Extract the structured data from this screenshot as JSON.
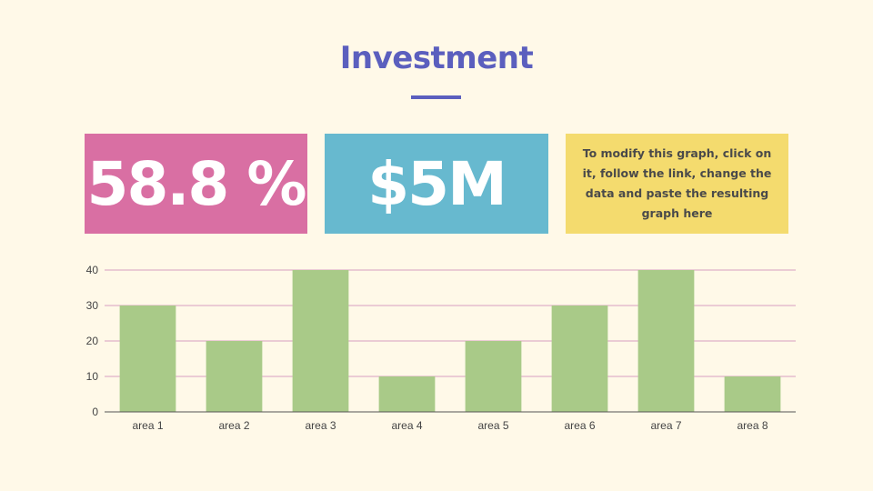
{
  "slide": {
    "title": "Investment",
    "stat_percent": "58.8 %",
    "stat_money": "$5M",
    "note": "To modify this graph, click on it, follow the link, change the data and paste the resulting graph here"
  },
  "colors": {
    "background": "#fff9e8",
    "title": "#5b5fbe",
    "pink": "#d96fa3",
    "blue": "#67b9cf",
    "yellow": "#f4db6e",
    "bar": "#a9ca88",
    "gridline": "#d7a0c0"
  },
  "chart_data": {
    "type": "bar",
    "categories": [
      "area 1",
      "area 2",
      "area 3",
      "area 4",
      "area 5",
      "area 6",
      "area 7",
      "area 8"
    ],
    "values": [
      30,
      20,
      40,
      10,
      20,
      30,
      40,
      10
    ],
    "yticks": [
      0,
      10,
      20,
      30,
      40
    ],
    "ylim": [
      0,
      40
    ],
    "grid": true,
    "legend": "none"
  }
}
